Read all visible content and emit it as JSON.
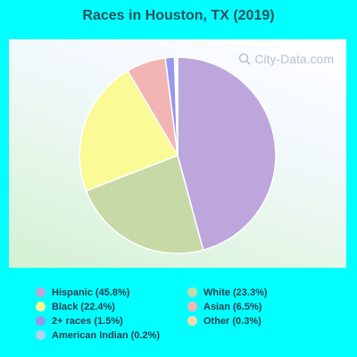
{
  "chart_data": {
    "type": "pie",
    "title": "Races in Houston, TX (2019)",
    "slices": [
      {
        "label": "Hispanic (45.8%)",
        "value": 45.8,
        "color": "#bca6dc"
      },
      {
        "label": "White (23.3%)",
        "value": 23.3,
        "color": "#c6d9a7"
      },
      {
        "label": "Black (22.4%)",
        "value": 22.4,
        "color": "#fafa96"
      },
      {
        "label": "Asian (6.5%)",
        "value": 6.5,
        "color": "#f3b5b3"
      },
      {
        "label": "2+ races (1.5%)",
        "value": 1.5,
        "color": "#9797ee"
      },
      {
        "label": "Other (0.3%)",
        "value": 0.3,
        "color": "#f4d8b0"
      },
      {
        "label": "American Indian (0.2%)",
        "value": 0.2,
        "color": "#aed2f5"
      }
    ],
    "legend_order": [
      "Hispanic (45.8%)",
      "White (23.3%)",
      "Black (22.4%)",
      "Asian (6.5%)",
      "2+ races (1.5%)",
      "Other (0.3%)",
      "American Indian (0.2%)"
    ]
  },
  "watermark": "City-Data.com"
}
